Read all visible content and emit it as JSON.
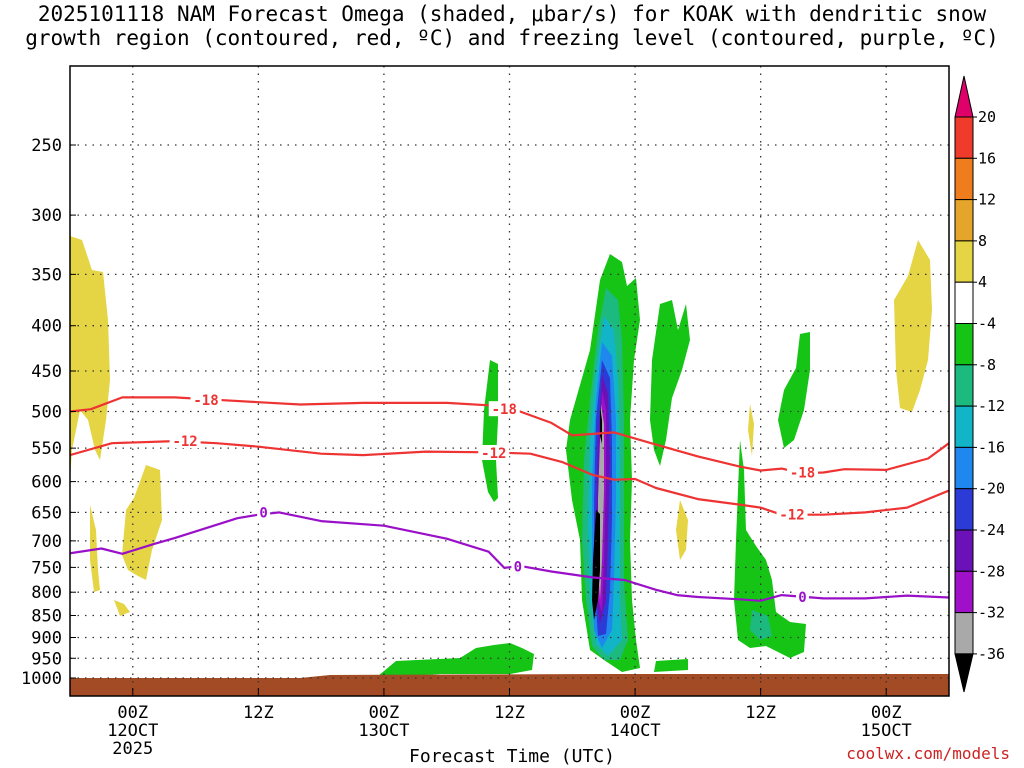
{
  "chart_data": {
    "type": "heatmap",
    "title_line1": "2025101118 NAM Forecast Omega (shaded, μbar/s) for KOAK with dendritic snow",
    "title_line2": "growth region (contoured, red, ºC) and freezing level (contoured, purple, ºC)",
    "xlabel": "Forecast Time (UTC)",
    "ylabel": "",
    "credit": "coolwx.com/models",
    "y_axis": {
      "type": "pressure_log",
      "ticks": [
        250,
        300,
        350,
        400,
        450,
        500,
        550,
        600,
        650,
        700,
        750,
        800,
        850,
        900,
        950,
        1000
      ],
      "range": [
        200,
        1020
      ]
    },
    "x_axis": {
      "range_hours": [
        0,
        84
      ],
      "ticks": [
        {
          "hour": 6,
          "label": "00Z",
          "sub": "12OCT",
          "sub2": "2025"
        },
        {
          "hour": 18,
          "label": "12Z",
          "sub": "",
          "sub2": ""
        },
        {
          "hour": 30,
          "label": "00Z",
          "sub": "13OCT",
          "sub2": ""
        },
        {
          "hour": 42,
          "label": "12Z",
          "sub": "",
          "sub2": ""
        },
        {
          "hour": 54,
          "label": "00Z",
          "sub": "14OCT",
          "sub2": ""
        },
        {
          "hour": 66,
          "label": "12Z",
          "sub": "",
          "sub2": ""
        },
        {
          "hour": 78,
          "label": "00Z",
          "sub": "15OCT",
          "sub2": ""
        }
      ]
    },
    "colorbar": {
      "levels": [
        "20",
        "16",
        "12",
        "8",
        "4",
        "-4",
        "-8",
        "-12",
        "-16",
        "-20",
        "-24",
        "-28",
        "-32",
        "-36"
      ],
      "colors": [
        "#e0006a",
        "#ee3b2c",
        "#ef7d1e",
        "#e5a52a",
        "#e5d443",
        "#ffffff",
        "#16c416",
        "#1cba7e",
        "#12b5c8",
        "#1e88ee",
        "#2d3bd6",
        "#6a12b8",
        "#a010c8",
        "#a9a9a9",
        "#000000"
      ]
    },
    "contours": [
      {
        "name": "dgz-minus18",
        "label": "-18",
        "color": "#ee3333",
        "points": [
          [
            0,
            500
          ],
          [
            2,
            497
          ],
          [
            5,
            482
          ],
          [
            10,
            482
          ],
          [
            14,
            485
          ],
          [
            18,
            488
          ],
          [
            22,
            491
          ],
          [
            28,
            489
          ],
          [
            36,
            489
          ],
          [
            40,
            492
          ],
          [
            43,
            500
          ],
          [
            46,
            515
          ],
          [
            48,
            532
          ],
          [
            52,
            528
          ],
          [
            56,
            545
          ],
          [
            60,
            562
          ],
          [
            64,
            577
          ],
          [
            66,
            583
          ],
          [
            68,
            580
          ],
          [
            70,
            587
          ],
          [
            72,
            586
          ],
          [
            74,
            581
          ],
          [
            78,
            582
          ],
          [
            82,
            565
          ],
          [
            84,
            543
          ]
        ],
        "label_positions": [
          [
            13,
            485
          ],
          [
            41.5,
            497
          ],
          [
            70,
            586
          ]
        ]
      },
      {
        "name": "dgz-minus12",
        "label": "-12",
        "color": "#ee3333",
        "points": [
          [
            0,
            560
          ],
          [
            4,
            543
          ],
          [
            10,
            540
          ],
          [
            14,
            543
          ],
          [
            18,
            548
          ],
          [
            24,
            558
          ],
          [
            28,
            560
          ],
          [
            34,
            555
          ],
          [
            40,
            556
          ],
          [
            44,
            558
          ],
          [
            47,
            570
          ],
          [
            50,
            590
          ],
          [
            52,
            597
          ],
          [
            54,
            596
          ],
          [
            56,
            610
          ],
          [
            60,
            628
          ],
          [
            64,
            637
          ],
          [
            66,
            642
          ],
          [
            68,
            654
          ],
          [
            72,
            654
          ],
          [
            76,
            650
          ],
          [
            80,
            642
          ],
          [
            84,
            614
          ]
        ],
        "label_positions": [
          [
            11,
            540
          ],
          [
            40.5,
            557
          ],
          [
            69,
            654
          ]
        ]
      },
      {
        "name": "freezing-level",
        "label": "0",
        "color": "#9a10c8",
        "points": [
          [
            0,
            723
          ],
          [
            3,
            714
          ],
          [
            5,
            724
          ],
          [
            8,
            706
          ],
          [
            10,
            695
          ],
          [
            12,
            683
          ],
          [
            16,
            660
          ],
          [
            18,
            654
          ],
          [
            20,
            650
          ],
          [
            24,
            665
          ],
          [
            30,
            673
          ],
          [
            36,
            696
          ],
          [
            40,
            720
          ],
          [
            41.5,
            751
          ],
          [
            43,
            747
          ],
          [
            46,
            758
          ],
          [
            50,
            770
          ],
          [
            53,
            775
          ],
          [
            56,
            795
          ],
          [
            58,
            806
          ],
          [
            60,
            810
          ],
          [
            64,
            815
          ],
          [
            66,
            818
          ],
          [
            68,
            806
          ],
          [
            72,
            813
          ],
          [
            76,
            813
          ],
          [
            80,
            807
          ],
          [
            84,
            811
          ]
        ],
        "label_positions": [
          [
            18.5,
            650
          ],
          [
            42.8,
            748
          ],
          [
            70,
            810
          ]
        ]
      }
    ]
  }
}
